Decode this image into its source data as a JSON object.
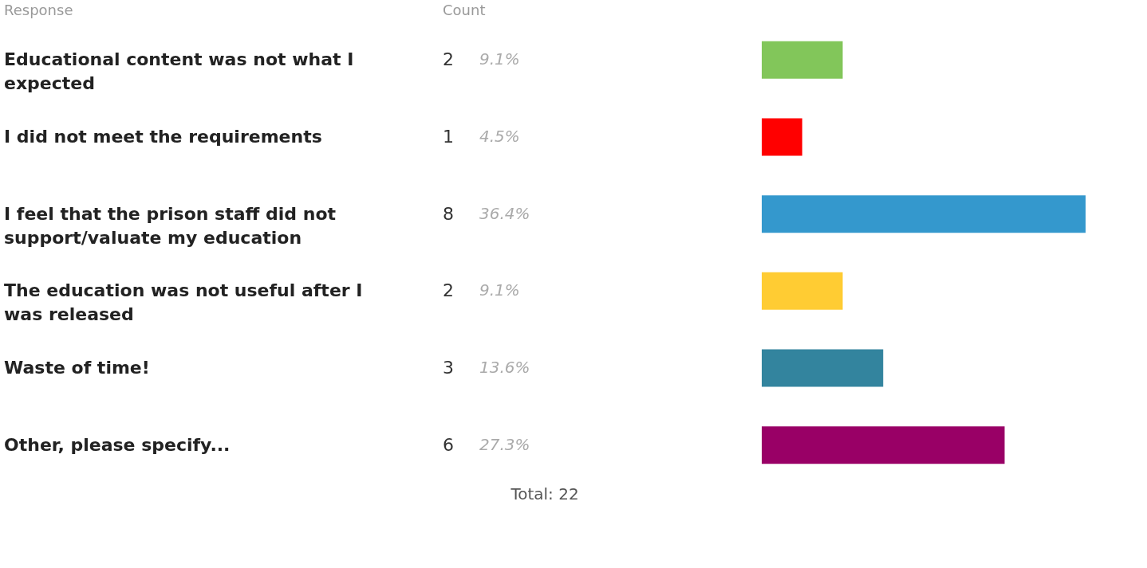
{
  "chart_data": {
    "type": "bar",
    "orientation": "horizontal",
    "ylabel": "Response",
    "xlabel": "Count",
    "categories": [
      "Educational content was not what I expected",
      "I did not meet the requirements",
      "I feel that the prison staff did not support/valuate my education",
      "The education was not useful after I was released",
      "Waste of time!",
      "Other, please specify..."
    ],
    "values": [
      2,
      1,
      8,
      2,
      3,
      6
    ],
    "colors": [
      "#82c65a",
      "#ff0000",
      "#3498cd",
      "#ffcc33",
      "#33849e",
      "#990066"
    ],
    "data_labels": true,
    "annotations": [
      "9.1%",
      "4.5%",
      "36.4%",
      "9.1%",
      "13.6%",
      "27.3%",
      "Total: 22"
    ]
  }
}
